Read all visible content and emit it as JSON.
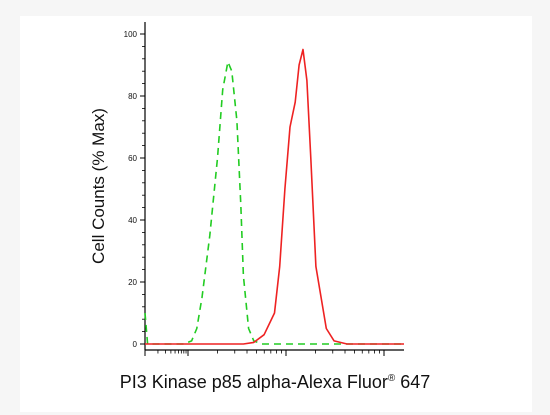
{
  "chart_data": {
    "type": "line",
    "title": "",
    "xlabel": "PI3 Kinase p85 alpha-Alexa Fluor",
    "xlabel_mark": "®",
    "xlabel_suffix": " 647",
    "ylabel": "Cell Counts (% Max)",
    "ylim": [
      0,
      100
    ],
    "xlim": [
      0,
      1
    ],
    "y_ticks": [
      "0",
      "20",
      "40",
      "60",
      "80",
      "100"
    ],
    "x_scale": "log",
    "grid": false,
    "legend": "none",
    "series": [
      {
        "color": "#22cc22",
        "style": "dashed",
        "x": [
          0.0,
          0.01,
          0.02,
          0.08,
          0.15,
          0.18,
          0.2,
          0.22,
          0.25,
          0.28,
          0.3,
          0.32,
          0.335,
          0.355,
          0.37,
          0.38,
          0.4,
          0.42,
          0.45,
          1.0
        ],
        "y": [
          10,
          0,
          0,
          0,
          0,
          1,
          5,
          15,
          35,
          60,
          82,
          91,
          88,
          72,
          45,
          22,
          5,
          1,
          0,
          0
        ]
      },
      {
        "color": "#ee2222",
        "style": "solid",
        "x": [
          0.0,
          0.3,
          0.38,
          0.42,
          0.46,
          0.5,
          0.52,
          0.54,
          0.56,
          0.58,
          0.595,
          0.61,
          0.625,
          0.64,
          0.66,
          0.7,
          0.73,
          0.78,
          1.0
        ],
        "y": [
          0,
          0,
          0,
          0.5,
          3,
          10,
          25,
          50,
          70,
          78,
          90,
          95,
          85,
          60,
          25,
          5,
          1,
          0,
          0
        ]
      }
    ]
  }
}
